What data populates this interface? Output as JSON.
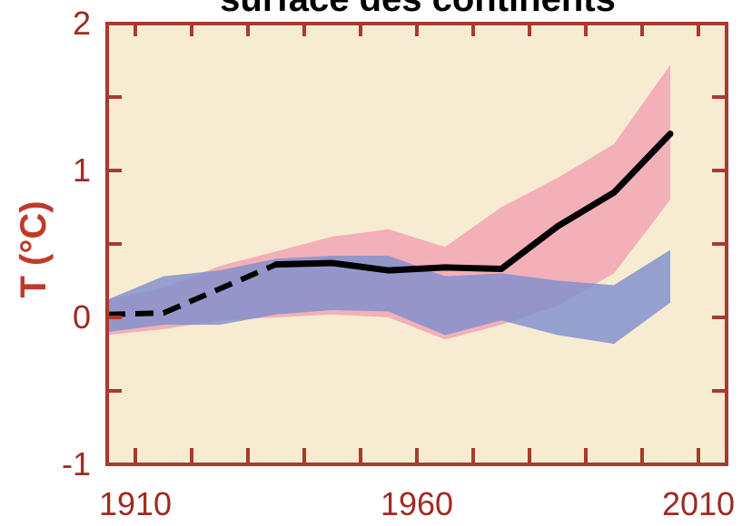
{
  "chart_data": {
    "type": "line",
    "title": "surface des continents",
    "xlabel": "",
    "ylabel": "T (°C)",
    "xlim": [
      1905,
      2015
    ],
    "ylim": [
      -1,
      2
    ],
    "x_ticks": [
      1910,
      1960,
      2010
    ],
    "x_tick_labels": [
      "1910",
      "1960",
      "2010"
    ],
    "y_ticks": [
      -1,
      0,
      1,
      2
    ],
    "y_tick_labels": [
      "-1",
      "0",
      "1",
      "2"
    ],
    "grid": false,
    "colors": {
      "background": "#f7ecd2",
      "frame": "#a83a2e",
      "pink_band": "#f2a6b4",
      "blue_band": "#7f8fcd",
      "observed_line": "#000000"
    },
    "series": [
      {
        "style": "band",
        "color": "#f2a6b4",
        "x": [
          1905,
          1915,
          1925,
          1935,
          1945,
          1955,
          1965,
          1975,
          1985,
          1995,
          2005
        ],
        "lower": [
          -0.12,
          -0.08,
          -0.02,
          0.0,
          0.02,
          0.0,
          -0.15,
          -0.05,
          0.08,
          0.3,
          0.8
        ],
        "upper": [
          0.12,
          0.2,
          0.35,
          0.45,
          0.55,
          0.6,
          0.48,
          0.75,
          0.95,
          1.18,
          1.72
        ]
      },
      {
        "style": "band",
        "color": "#7f8fcd",
        "x": [
          1905,
          1915,
          1925,
          1935,
          1945,
          1955,
          1965,
          1975,
          1985,
          1995,
          2005
        ],
        "lower": [
          -0.1,
          -0.05,
          -0.05,
          0.02,
          0.05,
          0.04,
          -0.12,
          -0.02,
          -0.12,
          -0.18,
          0.1
        ],
        "upper": [
          0.12,
          0.28,
          0.32,
          0.4,
          0.42,
          0.42,
          0.28,
          0.3,
          0.25,
          0.22,
          0.46
        ]
      },
      {
        "style": "line",
        "color": "#000000",
        "x": [
          1905,
          1915,
          1935,
          1945,
          1955,
          1965,
          1975,
          1985,
          1995,
          2005
        ],
        "y": [
          0.02,
          0.03,
          0.36,
          0.37,
          0.32,
          0.34,
          0.33,
          0.62,
          0.85,
          1.25
        ],
        "dashed_until_x": 1935
      }
    ]
  }
}
